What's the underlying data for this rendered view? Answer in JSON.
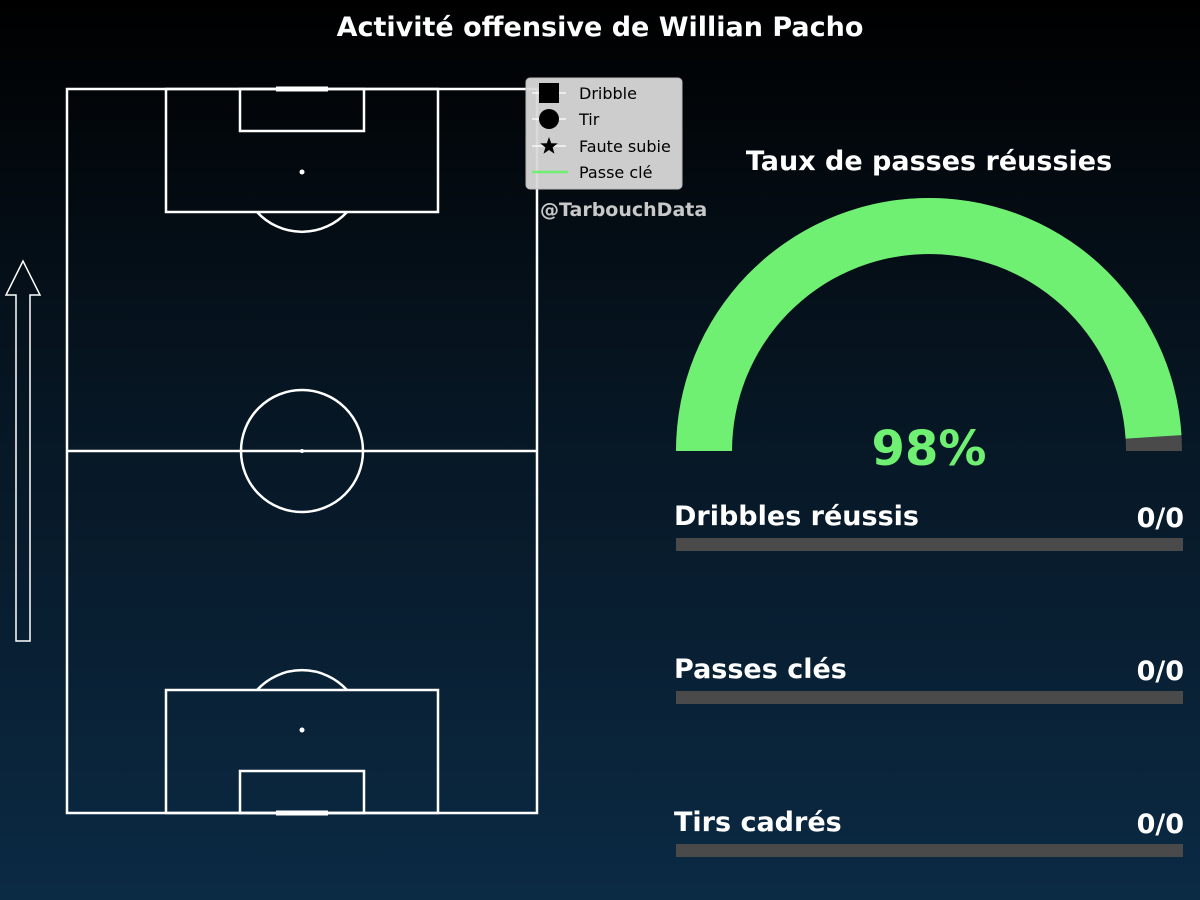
{
  "title": "Activité offensive de Willian Pacho",
  "watermark": "@TarbouchData",
  "legend": {
    "placement": "top-right of pitch",
    "items": [
      {
        "label": "Dribble",
        "marker": "square"
      },
      {
        "label": "Tir",
        "marker": "circle"
      },
      {
        "label": "Faute subie",
        "marker": "star"
      },
      {
        "label": "Passe clé",
        "marker": "line"
      }
    ]
  },
  "colors": {
    "accent": "#6ff073",
    "track": "#4a4a4a",
    "text": "#ffffff",
    "pitch_line": "#ffffff",
    "legend_bg": "#d8d8d8",
    "watermark": "#c8c8c8"
  },
  "chart_data": [
    {
      "type": "scatter",
      "title": "",
      "description": "Pitch event map (direction of play: upward)",
      "series": []
    },
    {
      "type": "gauge",
      "title": "Taux de passes réussies",
      "value": 98,
      "value_label": "98%",
      "max": 100
    },
    {
      "type": "bar",
      "orientation": "horizontal",
      "categories": [
        "Dribbles réussis",
        "Passes clés",
        "Tirs cadrés"
      ],
      "values": [
        0,
        0,
        0
      ],
      "totals": [
        0,
        0,
        0
      ],
      "value_labels": [
        "0/0",
        "0/0",
        "0/0"
      ]
    }
  ]
}
